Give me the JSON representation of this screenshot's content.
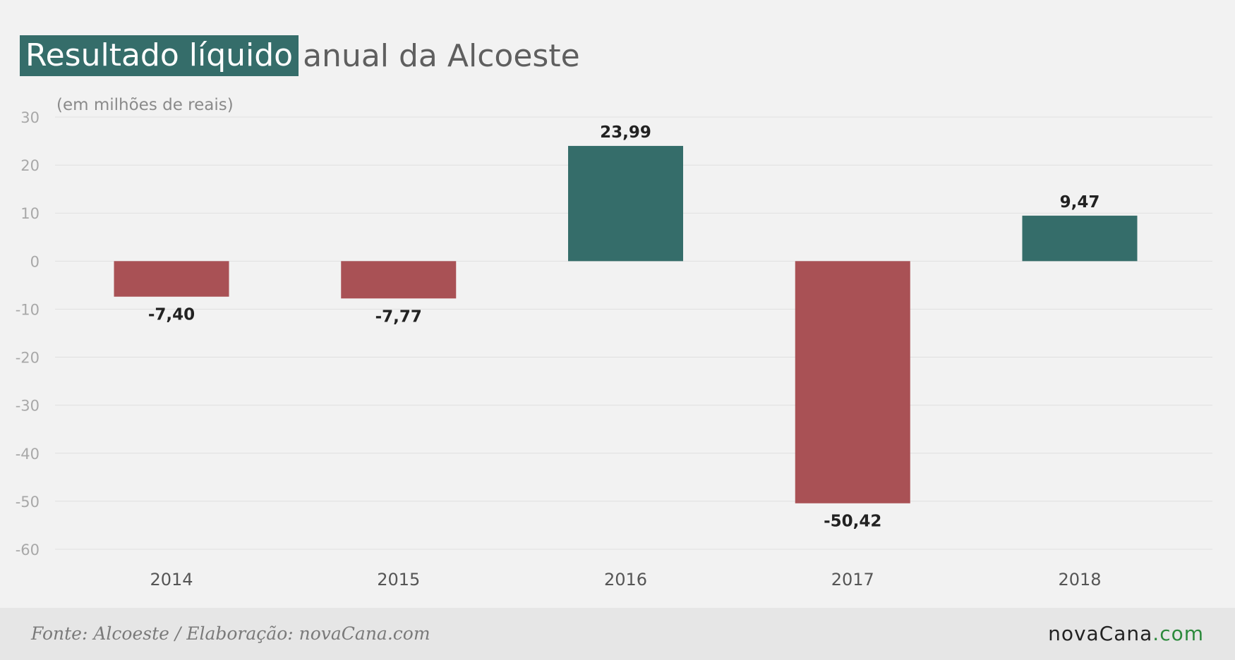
{
  "title": {
    "highlight": "Resultado líquido",
    "rest": "anual da Alcoeste"
  },
  "colors": {
    "positive": "#356d6a",
    "negative": "#a95155",
    "title_highlight": "#356d6a",
    "brand_tld": "#2c8a3c"
  },
  "chart_data": {
    "type": "bar",
    "categories": [
      "2014",
      "2015",
      "2016",
      "2017",
      "2018"
    ],
    "values": [
      -7.4,
      -7.77,
      23.99,
      -50.42,
      9.47
    ],
    "data_labels": [
      "-7,40",
      "-7,77",
      "23,99",
      "-50,42",
      "9,47"
    ],
    "unit_label": "(em milhões de reais)",
    "ylim": [
      -60,
      30
    ],
    "yticks": [
      30,
      20,
      10,
      0,
      -10,
      -20,
      -30,
      -40,
      -50,
      -60
    ],
    "grid": true,
    "legend": "none"
  },
  "footer": {
    "source": "Fonte: Alcoeste / Elaboração: novaCana.com",
    "brand_name": "novaCana",
    "brand_tld": ".com"
  }
}
